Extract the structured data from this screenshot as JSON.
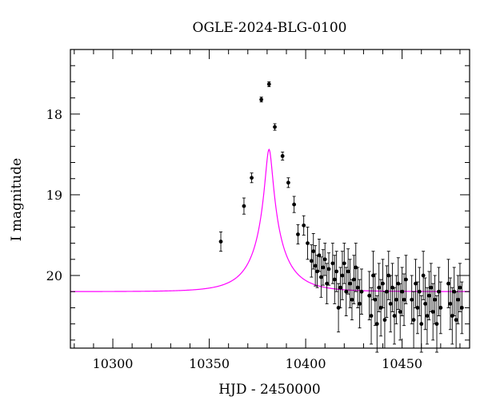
{
  "chart_data": {
    "type": "scatter",
    "title": "OGLE-2024-BLG-0100",
    "xlabel": "HJD - 2450000",
    "ylabel": "I magnitude",
    "xlim": [
      10278,
      10485
    ],
    "ylim": [
      20.9,
      17.2
    ],
    "y_inverted": true,
    "grid": false,
    "x_ticks": [
      10300,
      10350,
      10400,
      10450
    ],
    "x_tick_labels": [
      "10300",
      "10350",
      "10400",
      "10450"
    ],
    "y_ticks": [
      18,
      19,
      20
    ],
    "y_tick_labels": [
      "18",
      "19",
      "20"
    ],
    "model_color": "#ff00ff",
    "point_color": "#000000",
    "model": {
      "t0": 10381,
      "u0": 0.1,
      "tE": 18,
      "baseline_mag": 20.2,
      "blend_fraction": 0.45
    },
    "series": [
      {
        "x": [
          10356,
          10368,
          10372,
          10377,
          10381,
          10384,
          10388,
          10391,
          10394,
          10396,
          10399,
          10401,
          10403,
          10404,
          10405,
          10406,
          10407,
          10408,
          10409,
          10410,
          10411,
          10412,
          10414,
          10415,
          10416,
          10417,
          10418,
          10419,
          10420,
          10421,
          10422,
          10423,
          10424,
          10425,
          10426,
          10427,
          10428,
          10429,
          10433,
          10434,
          10435,
          10436,
          10437,
          10438,
          10439,
          10440,
          10441,
          10442,
          10443,
          10444,
          10445,
          10446,
          10447,
          10448,
          10449,
          10450,
          10451,
          10452,
          10455,
          10456,
          10457,
          10458,
          10459,
          10460,
          10461,
          10462,
          10463,
          10464,
          10465,
          10466,
          10467,
          10468,
          10469,
          10470,
          10474,
          10475,
          10476,
          10477,
          10478,
          10479,
          10480,
          10481
        ],
        "y": [
          19.58,
          19.14,
          18.79,
          17.82,
          17.63,
          18.16,
          18.52,
          18.85,
          19.12,
          19.49,
          19.38,
          19.6,
          19.82,
          19.7,
          19.88,
          19.95,
          19.75,
          20.02,
          19.9,
          19.8,
          20.1,
          19.92,
          19.85,
          20.05,
          19.95,
          20.4,
          20.15,
          20.0,
          19.85,
          20.2,
          19.95,
          20.1,
          20.3,
          20.05,
          19.9,
          20.15,
          20.35,
          20.2,
          20.25,
          20.5,
          20.0,
          20.3,
          20.6,
          20.15,
          20.4,
          20.1,
          20.55,
          20.2,
          20.0,
          20.35,
          20.15,
          20.5,
          20.3,
          20.1,
          20.45,
          20.2,
          20.3,
          20.05,
          20.3,
          20.55,
          20.1,
          20.4,
          20.2,
          20.6,
          20.0,
          20.35,
          20.5,
          20.25,
          20.15,
          20.45,
          20.3,
          20.6,
          20.2,
          20.4,
          20.1,
          20.35,
          20.5,
          20.2,
          20.55,
          20.3,
          20.15,
          20.4
        ],
        "yerr": [
          0.12,
          0.1,
          0.06,
          0.03,
          0.03,
          0.04,
          0.05,
          0.06,
          0.1,
          0.12,
          0.12,
          0.2,
          0.2,
          0.22,
          0.25,
          0.2,
          0.2,
          0.25,
          0.22,
          0.2,
          0.25,
          0.2,
          0.25,
          0.3,
          0.25,
          0.3,
          0.25,
          0.3,
          0.25,
          0.3,
          0.28,
          0.3,
          0.25,
          0.3,
          0.3,
          0.25,
          0.3,
          0.28,
          0.3,
          0.35,
          0.3,
          0.32,
          0.35,
          0.3,
          0.35,
          0.3,
          0.35,
          0.32,
          0.3,
          0.35,
          0.3,
          0.35,
          0.3,
          0.32,
          0.35,
          0.3,
          0.32,
          0.3,
          0.3,
          0.35,
          0.3,
          0.32,
          0.3,
          0.35,
          0.3,
          0.32,
          0.35,
          0.3,
          0.3,
          0.35,
          0.3,
          0.35,
          0.3,
          0.32,
          0.3,
          0.32,
          0.35,
          0.3,
          0.35,
          0.3,
          0.3,
          0.32
        ]
      }
    ]
  }
}
